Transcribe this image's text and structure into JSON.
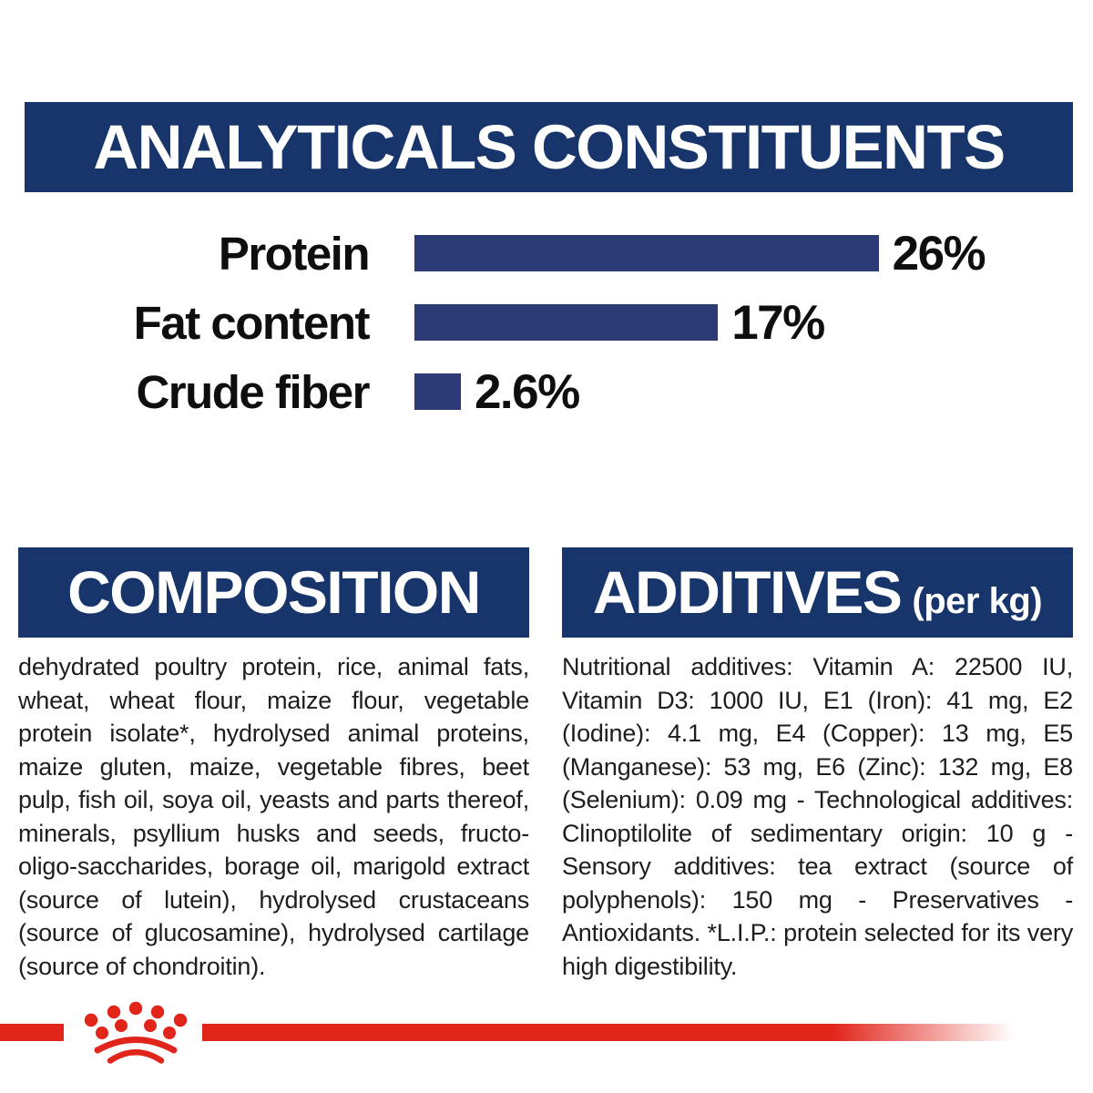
{
  "colors": {
    "navy_header": "#17356b",
    "navy_bar": "#2b3a75",
    "red": "#e1251b",
    "text": "#1d1d1b"
  },
  "analyticals": {
    "title": "ANALYTICALS CONSTITUENTS"
  },
  "chart_data": {
    "type": "bar",
    "orientation": "horizontal",
    "title": "ANALYTICALS CONSTITUENTS",
    "categories": [
      "Protein",
      "Fat content",
      "Crude fiber"
    ],
    "values": [
      26,
      17,
      2.6
    ],
    "value_labels": [
      "26%",
      "17%",
      "2.6%"
    ],
    "unit": "%",
    "xlim": [
      0,
      26
    ],
    "grid": false,
    "bar_color": "#2b3a75"
  },
  "composition": {
    "title": "COMPOSITION",
    "body": "dehydrated poultry protein, rice, animal fats, wheat, wheat flour, maize flour, vegetable protein isolate*, hydrolysed animal proteins, maize gluten, maize, vegetable fibres, beet pulp, fish oil, soya oil, yeasts and parts thereof, minerals, psyllium husks and seeds, fructo-oligo-saccharides, borage oil, marigold extract (source of lutein), hydrolysed crustaceans (source of glucosamine), hydrolysed cartilage (source of chondroitin)."
  },
  "additives": {
    "title": "ADDITIVES",
    "title_suffix": "(per kg)",
    "body": "Nutritional additives: Vitamin A: 22500 IU, Vitamin D3: 1000 IU, E1 (Iron): 41 mg, E2 (Iodine): 4.1 mg, E4 (Copper): 13 mg, E5 (Manganese): 53 mg, E6 (Zinc): 132 mg, E8 (Selenium): 0.09 mg - Technological additives: Clinoptilolite of sedimentary origin: 10 g - Sensory additives: tea extract (source of polyphenols): 150 mg - Preservatives - Antioxidants. *L.I.P.: protein selected for its very high digestibility."
  }
}
